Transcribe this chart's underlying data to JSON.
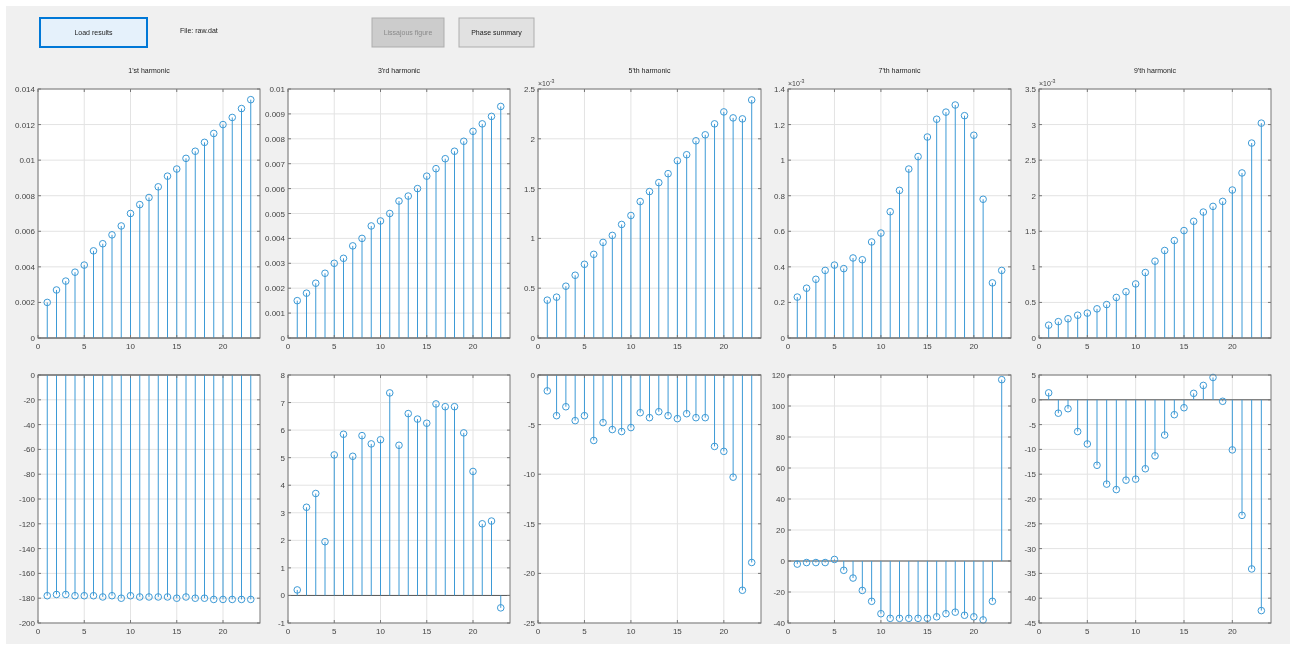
{
  "chart_data": [
    {
      "type": "other",
      "annotations": [
        "Load results",
        "File: raw.dat",
        "Lissajous figure",
        "Phase summary"
      ]
    },
    {
      "type": "lollipop",
      "title": "1'st harmonic",
      "x": [
        1,
        2,
        3,
        4,
        5,
        6,
        7,
        8,
        9,
        10,
        11,
        12,
        13,
        14,
        15,
        16,
        17,
        18,
        19,
        20,
        21,
        22,
        23
      ],
      "color": "#3d9ad6",
      "marker": "circle",
      "grid": true,
      "xlim": [
        0,
        24
      ],
      "xticks": [
        0,
        5,
        10,
        15,
        20
      ],
      "ylim": [
        0,
        0.014
      ],
      "yticks": [
        0,
        0.002,
        0.004,
        0.006,
        0.008,
        0.01,
        0.012,
        0.014
      ],
      "values": [
        0.002,
        0.0027,
        0.0032,
        0.0037,
        0.0041,
        0.0049,
        0.0053,
        0.0058,
        0.0063,
        0.007,
        0.0075,
        0.0079,
        0.0085,
        0.0091,
        0.0095,
        0.0101,
        0.0105,
        0.011,
        0.0115,
        0.012,
        0.0124,
        0.0129,
        0.0134
      ]
    },
    {
      "type": "lollipop",
      "title": "3'rd harmonic",
      "x": [
        1,
        2,
        3,
        4,
        5,
        6,
        7,
        8,
        9,
        10,
        11,
        12,
        13,
        14,
        15,
        16,
        17,
        18,
        19,
        20,
        21,
        22,
        23
      ],
      "color": "#3d9ad6",
      "marker": "circle",
      "grid": true,
      "xlim": [
        0,
        24
      ],
      "xticks": [
        0,
        5,
        10,
        15,
        20
      ],
      "ylim": [
        0,
        0.01
      ],
      "yticks": [
        0,
        0.001,
        0.002,
        0.003,
        0.004,
        0.005,
        0.006,
        0.007,
        0.008,
        0.009,
        0.01
      ],
      "values": [
        0.0015,
        0.0018,
        0.0022,
        0.0026,
        0.003,
        0.0032,
        0.0037,
        0.004,
        0.0045,
        0.0047,
        0.005,
        0.0055,
        0.0057,
        0.006,
        0.0065,
        0.0068,
        0.0072,
        0.0075,
        0.0079,
        0.0083,
        0.0086,
        0.0089,
        0.0093
      ]
    },
    {
      "type": "lollipop",
      "title": "5'th harmonic",
      "annotations": [
        "×10$^{-3}$"
      ],
      "x": [
        1,
        2,
        3,
        4,
        5,
        6,
        7,
        8,
        9,
        10,
        11,
        12,
        13,
        14,
        15,
        16,
        17,
        18,
        19,
        20,
        21,
        22,
        23
      ],
      "color": "#3d9ad6",
      "marker": "circle",
      "grid": true,
      "xlim": [
        0,
        24
      ],
      "xticks": [
        0,
        5,
        10,
        15,
        20
      ],
      "ylim": [
        0,
        2.5
      ],
      "yticks": [
        0,
        0.5,
        1,
        1.5,
        2,
        2.5
      ],
      "values": [
        0.38,
        0.41,
        0.52,
        0.63,
        0.74,
        0.84,
        0.96,
        1.03,
        1.14,
        1.23,
        1.37,
        1.47,
        1.56,
        1.65,
        1.78,
        1.84,
        1.98,
        2.04,
        2.15,
        2.27,
        2.21,
        2.2,
        2.39
      ]
    },
    {
      "type": "lollipop",
      "title": "7'th harmonic",
      "annotations": [
        "×10$^{-3}$"
      ],
      "x": [
        1,
        2,
        3,
        4,
        5,
        6,
        7,
        8,
        9,
        10,
        11,
        12,
        13,
        14,
        15,
        16,
        17,
        18,
        19,
        20,
        21,
        22,
        23
      ],
      "color": "#3d9ad6",
      "marker": "circle",
      "grid": true,
      "xlim": [
        0,
        24
      ],
      "xticks": [
        0,
        5,
        10,
        15,
        20
      ],
      "ylim": [
        0,
        1.4
      ],
      "yticks": [
        0,
        0.2,
        0.4,
        0.6,
        0.8,
        1,
        1.2,
        1.4
      ],
      "values": [
        0.23,
        0.28,
        0.33,
        0.38,
        0.41,
        0.39,
        0.45,
        0.44,
        0.54,
        0.59,
        0.71,
        0.83,
        0.95,
        1.02,
        1.13,
        1.23,
        1.27,
        1.31,
        1.25,
        1.14,
        0.78,
        0.31,
        0.38
      ]
    },
    {
      "type": "lollipop",
      "title": "9'th harmonic",
      "annotations": [
        "×10$^{-3}$"
      ],
      "x": [
        1,
        2,
        3,
        4,
        5,
        6,
        7,
        8,
        9,
        10,
        11,
        12,
        13,
        14,
        15,
        16,
        17,
        18,
        19,
        20,
        21,
        22,
        23
      ],
      "color": "#3d9ad6",
      "marker": "circle",
      "grid": true,
      "xlim": [
        0,
        24
      ],
      "xticks": [
        0,
        5,
        10,
        15,
        20
      ],
      "ylim": [
        0,
        3.5
      ],
      "yticks": [
        0,
        0.5,
        1,
        1.5,
        2,
        2.5,
        3,
        3.5
      ],
      "values": [
        0.18,
        0.23,
        0.27,
        0.32,
        0.35,
        0.41,
        0.47,
        0.57,
        0.65,
        0.76,
        0.92,
        1.08,
        1.23,
        1.37,
        1.51,
        1.64,
        1.77,
        1.85,
        1.92,
        2.08,
        2.32,
        2.74,
        3.02
      ]
    },
    {
      "type": "lollipop",
      "x": [
        1,
        2,
        3,
        4,
        5,
        6,
        7,
        8,
        9,
        10,
        11,
        12,
        13,
        14,
        15,
        16,
        17,
        18,
        19,
        20,
        21,
        22,
        23
      ],
      "color": "#3d9ad6",
      "marker": "circle",
      "grid": true,
      "xlim": [
        0,
        24
      ],
      "xticks": [
        0,
        5,
        10,
        15,
        20
      ],
      "ylim": [
        -200,
        0
      ],
      "yticks": [
        -200,
        -180,
        -160,
        -140,
        -120,
        -100,
        -80,
        -60,
        -40,
        -20,
        0
      ],
      "values": [
        -178,
        -177,
        -177,
        -178,
        -178,
        -178,
        -179,
        -178,
        -180,
        -178,
        -179,
        -179,
        -179,
        -179,
        -180,
        -179,
        -180,
        -180,
        -181,
        -181,
        -181,
        -181,
        -181
      ]
    },
    {
      "type": "lollipop",
      "x": [
        1,
        2,
        3,
        4,
        5,
        6,
        7,
        8,
        9,
        10,
        11,
        12,
        13,
        14,
        15,
        16,
        17,
        18,
        19,
        20,
        21,
        22,
        23
      ],
      "color": "#3d9ad6",
      "marker": "circle",
      "grid": true,
      "xlim": [
        0,
        24
      ],
      "xticks": [
        0,
        5,
        10,
        15,
        20
      ],
      "ylim": [
        -1,
        8
      ],
      "yticks": [
        -1,
        0,
        1,
        2,
        3,
        4,
        5,
        6,
        7,
        8
      ],
      "values": [
        0.2,
        3.2,
        3.7,
        1.95,
        5.1,
        5.85,
        5.05,
        5.8,
        5.5,
        5.65,
        7.35,
        5.45,
        6.6,
        6.4,
        6.25,
        6.95,
        6.85,
        6.85,
        5.9,
        4.5,
        2.6,
        2.7,
        -0.45
      ]
    },
    {
      "type": "lollipop",
      "x": [
        1,
        2,
        3,
        4,
        5,
        6,
        7,
        8,
        9,
        10,
        11,
        12,
        13,
        14,
        15,
        16,
        17,
        18,
        19,
        20,
        21,
        22,
        23
      ],
      "color": "#3d9ad6",
      "marker": "circle",
      "grid": true,
      "xlim": [
        0,
        24
      ],
      "xticks": [
        0,
        5,
        10,
        15,
        20
      ],
      "ylim": [
        -25,
        0
      ],
      "yticks": [
        -25,
        -20,
        -15,
        -10,
        -5,
        0
      ],
      "values": [
        -1.6,
        -4.1,
        -3.2,
        -4.6,
        -4.1,
        -6.6,
        -4.8,
        -5.5,
        -5.7,
        -5.3,
        -3.8,
        -4.3,
        -3.7,
        -4.1,
        -4.4,
        -3.9,
        -4.3,
        -4.3,
        -7.2,
        -7.7,
        -10.3,
        -21.7,
        -18.9
      ]
    },
    {
      "type": "lollipop",
      "x": [
        1,
        2,
        3,
        4,
        5,
        6,
        7,
        8,
        9,
        10,
        11,
        12,
        13,
        14,
        15,
        16,
        17,
        18,
        19,
        20,
        21,
        22,
        23
      ],
      "color": "#3d9ad6",
      "marker": "circle",
      "grid": true,
      "xlim": [
        0,
        24
      ],
      "xticks": [
        0,
        5,
        10,
        15,
        20
      ],
      "ylim": [
        -40,
        120
      ],
      "yticks": [
        -40,
        -20,
        0,
        20,
        40,
        60,
        80,
        100,
        120
      ],
      "values": [
        -2,
        -1,
        -1,
        -1,
        1,
        -6,
        -11,
        -19,
        -26,
        -34,
        -37,
        -37,
        -37,
        -37,
        -37,
        -36,
        -34,
        -33,
        -35,
        -36,
        -38,
        -26,
        117
      ]
    },
    {
      "type": "lollipop",
      "x": [
        1,
        2,
        3,
        4,
        5,
        6,
        7,
        8,
        9,
        10,
        11,
        12,
        13,
        14,
        15,
        16,
        17,
        18,
        19,
        20,
        21,
        22,
        23
      ],
      "color": "#3d9ad6",
      "marker": "circle",
      "grid": true,
      "xlim": [
        0,
        24
      ],
      "xticks": [
        0,
        5,
        10,
        15,
        20
      ],
      "ylim": [
        -45,
        5
      ],
      "yticks": [
        -45,
        -40,
        -35,
        -30,
        -25,
        -20,
        -15,
        -10,
        -5,
        0,
        5
      ],
      "values": [
        1.4,
        -2.7,
        -1.8,
        -6.4,
        -8.9,
        -13.2,
        -17,
        -18.1,
        -16.2,
        -16,
        -13.9,
        -11.3,
        -7.1,
        -3,
        -1.6,
        1.3,
        2.9,
        4.5,
        -0.3,
        -10.1,
        -23.3,
        -34.1,
        -42.5
      ]
    }
  ]
}
